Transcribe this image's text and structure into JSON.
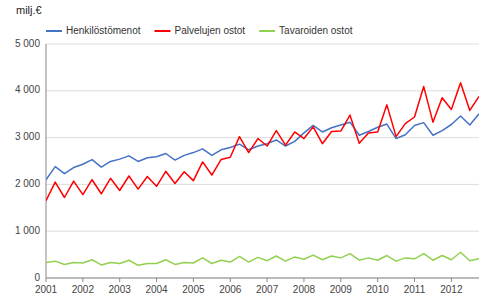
{
  "chart_data": {
    "type": "line",
    "title": "milj.€",
    "x": [
      2001,
      2001.25,
      2001.5,
      2001.75,
      2002,
      2002.25,
      2002.5,
      2002.75,
      2003,
      2003.25,
      2003.5,
      2003.75,
      2004,
      2004.25,
      2004.5,
      2004.75,
      2005,
      2005.25,
      2005.5,
      2005.75,
      2006,
      2006.25,
      2006.5,
      2006.75,
      2007,
      2007.25,
      2007.5,
      2007.75,
      2008,
      2008.25,
      2008.5,
      2008.75,
      2009,
      2009.25,
      2009.5,
      2009.75,
      2010,
      2010.25,
      2010.5,
      2010.75,
      2011,
      2011.25,
      2011.5,
      2011.75,
      2012,
      2012.25,
      2012.5,
      2012.75
    ],
    "series": [
      {
        "name": "Henkilöstömenot",
        "color": "#4472C4",
        "values": [
          2100,
          2380,
          2230,
          2360,
          2430,
          2530,
          2370,
          2490,
          2540,
          2610,
          2490,
          2570,
          2590,
          2660,
          2520,
          2620,
          2680,
          2760,
          2620,
          2740,
          2790,
          2860,
          2740,
          2820,
          2870,
          2950,
          2820,
          2920,
          3100,
          3260,
          3120,
          3210,
          3270,
          3330,
          3050,
          3130,
          3220,
          3290,
          2980,
          3060,
          3260,
          3320,
          3050,
          3150,
          3280,
          3460,
          3270,
          3510
        ]
      },
      {
        "name": "Palvelujen ostot",
        "color": "#FF0000",
        "values": [
          1650,
          2050,
          1720,
          2070,
          1780,
          2100,
          1800,
          2130,
          1870,
          2180,
          1900,
          2170,
          1960,
          2280,
          2020,
          2270,
          2080,
          2480,
          2200,
          2530,
          2580,
          3020,
          2680,
          2980,
          2820,
          3150,
          2840,
          3120,
          2980,
          3230,
          2870,
          3130,
          3140,
          3480,
          2880,
          3100,
          3120,
          3700,
          3020,
          3300,
          3440,
          4090,
          3330,
          3850,
          3600,
          4170,
          3580,
          3880
        ]
      },
      {
        "name": "Tavaroiden ostot",
        "color": "#92D050",
        "values": [
          330,
          360,
          290,
          330,
          320,
          390,
          280,
          330,
          310,
          380,
          270,
          310,
          310,
          390,
          290,
          330,
          320,
          430,
          310,
          380,
          340,
          460,
          340,
          440,
          370,
          470,
          360,
          450,
          400,
          490,
          390,
          470,
          430,
          520,
          380,
          430,
          380,
          480,
          360,
          430,
          410,
          520,
          380,
          480,
          390,
          550,
          370,
          410
        ]
      }
    ],
    "xlim": [
      2001,
      2012.75
    ],
    "xticks": [
      2001,
      2002,
      2003,
      2004,
      2005,
      2006,
      2007,
      2008,
      2009,
      2010,
      2011,
      2012
    ],
    "ylim": [
      0,
      5000
    ],
    "yticks": [
      0,
      {
        "value": 1000,
        "label": "1 000"
      },
      {
        "value": 2000,
        "label": "2 000"
      },
      {
        "value": 3000,
        "label": "3 000"
      },
      {
        "value": 4000,
        "label": "4 000"
      },
      {
        "value": 5000,
        "label": "5 000"
      }
    ],
    "grid": "y",
    "legend": "top-left"
  }
}
